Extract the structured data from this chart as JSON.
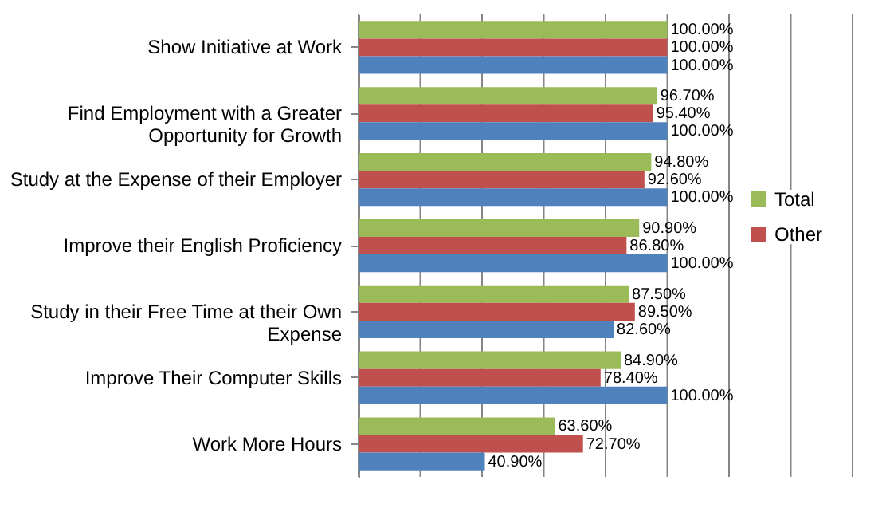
{
  "chart_data": {
    "type": "bar",
    "orientation": "horizontal",
    "categories": [
      "Show Initiative at Work",
      "Find Employment with a Greater Opportunity for Growth",
      "Study at the Expense of their Employer",
      "Improve their English Proficiency",
      "Study in their Free Time at their Own Expense",
      "Improve Their Computer Skills",
      "Work More Hours"
    ],
    "series": [
      {
        "name": "Total",
        "color": "#9bbb59",
        "values": [
          100,
          96.7,
          94.8,
          90.9,
          87.5,
          84.9,
          63.6
        ],
        "value_labels": [
          "100.00%",
          "96.70%",
          "94.80%",
          "90.90%",
          "87.50%",
          "84.90%",
          "63.60%"
        ]
      },
      {
        "name": "Other",
        "color": "#c0504d",
        "values": [
          100,
          95.4,
          92.6,
          86.8,
          89.5,
          78.4,
          72.7
        ],
        "value_labels": [
          "100.00%",
          "95.40%",
          "92.60%",
          "86.80%",
          "89.50%",
          "78.40%",
          "72.70%"
        ]
      },
      {
        "color": "#4f81bd",
        "values": [
          100,
          100,
          100,
          100,
          82.6,
          100,
          40.9
        ],
        "value_labels": [
          "100.00%",
          "100.00%",
          "100.00%",
          "100.00%",
          "82.60%",
          "100.00%",
          "40.90%"
        ]
      }
    ],
    "xlim": [
      0,
      160
    ],
    "xticks": [
      {
        "value": 0,
        "label": null
      },
      {
        "value": 20,
        "label": null
      },
      {
        "value": 40,
        "label": null
      },
      {
        "value": 60,
        "label": null
      },
      {
        "value": 80,
        "label": null
      },
      {
        "value": 100,
        "label": null
      },
      {
        "value": 120,
        "label": null
      },
      {
        "value": 140,
        "label": null
      },
      {
        "value": 160,
        "label": null
      }
    ],
    "tick_labels": "y",
    "grid": "x",
    "legend": "right"
  }
}
